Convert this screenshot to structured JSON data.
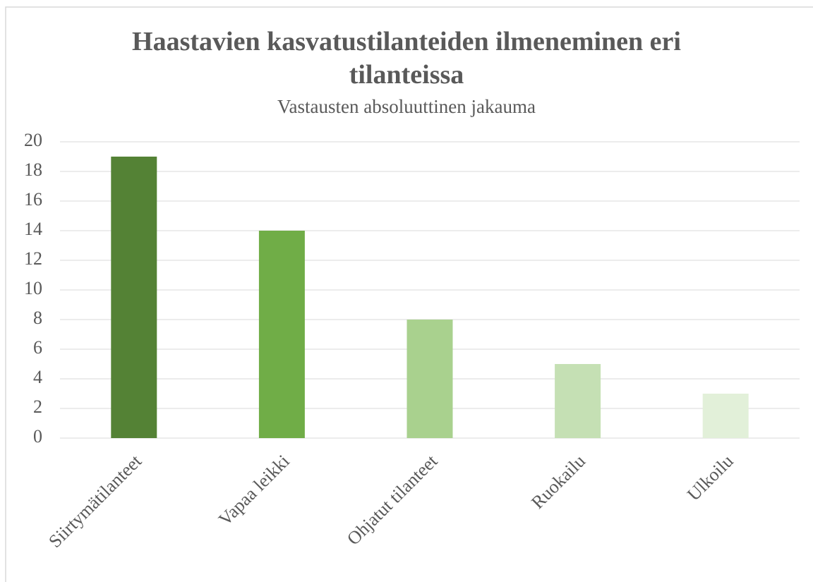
{
  "chart_data": {
    "type": "bar",
    "title": "Haastavien kasvatustilanteiden ilmeneminen eri tilanteissa",
    "subtitle": "Vastausten absoluuttinen jakauma",
    "categories": [
      "Siirtymätilanteet",
      "Vapaa leikki",
      "Ohjatut tilanteet",
      "Ruokailu",
      "Ulkoilu"
    ],
    "values": [
      19,
      14,
      8,
      5,
      3
    ],
    "colors": [
      "#548235",
      "#70ad47",
      "#a9d18e",
      "#c5e0b4",
      "#e2f0d9"
    ],
    "ylim": [
      0,
      20
    ],
    "yticks": [
      0,
      2,
      4,
      6,
      8,
      10,
      12,
      14,
      16,
      18,
      20
    ],
    "grid": true
  }
}
